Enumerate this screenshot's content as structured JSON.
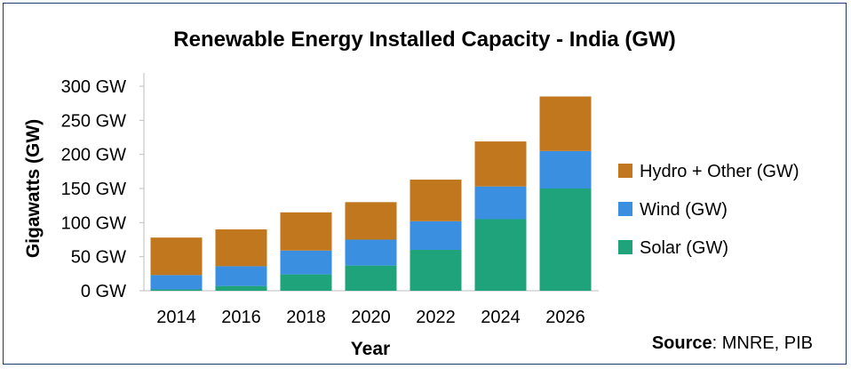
{
  "chart_data": {
    "type": "bar",
    "stacked": true,
    "title": "Renewable Energy Installed Capacity - India (GW)",
    "xlabel": "Year",
    "ylabel": "Gigawatts (GW)",
    "categories": [
      "2014",
      "2016",
      "2018",
      "2020",
      "2022",
      "2024",
      "2026"
    ],
    "ylim": [
      0,
      300
    ],
    "yticks": [
      "0 GW",
      "50 GW",
      "100 GW",
      "150 GW",
      "200 GW",
      "250 GW",
      "300 GW"
    ],
    "ytick_values": [
      0,
      50,
      100,
      150,
      200,
      250,
      300
    ],
    "grid": false,
    "legend_position": "right",
    "series": [
      {
        "name": "Solar (GW)",
        "color": "#1fa37a",
        "values": [
          2,
          7,
          24,
          37,
          60,
          105,
          150
        ]
      },
      {
        "name": "Wind (GW)",
        "color": "#3a8fe0",
        "values": [
          21,
          29,
          35,
          38,
          42,
          48,
          55
        ]
      },
      {
        "name": "Hydro + Other (GW)",
        "color": "#c0771e",
        "values": [
          55,
          54,
          56,
          55,
          61,
          66,
          80
        ]
      }
    ],
    "source_label": "Source",
    "source_text": ": MNRE, PIB"
  }
}
